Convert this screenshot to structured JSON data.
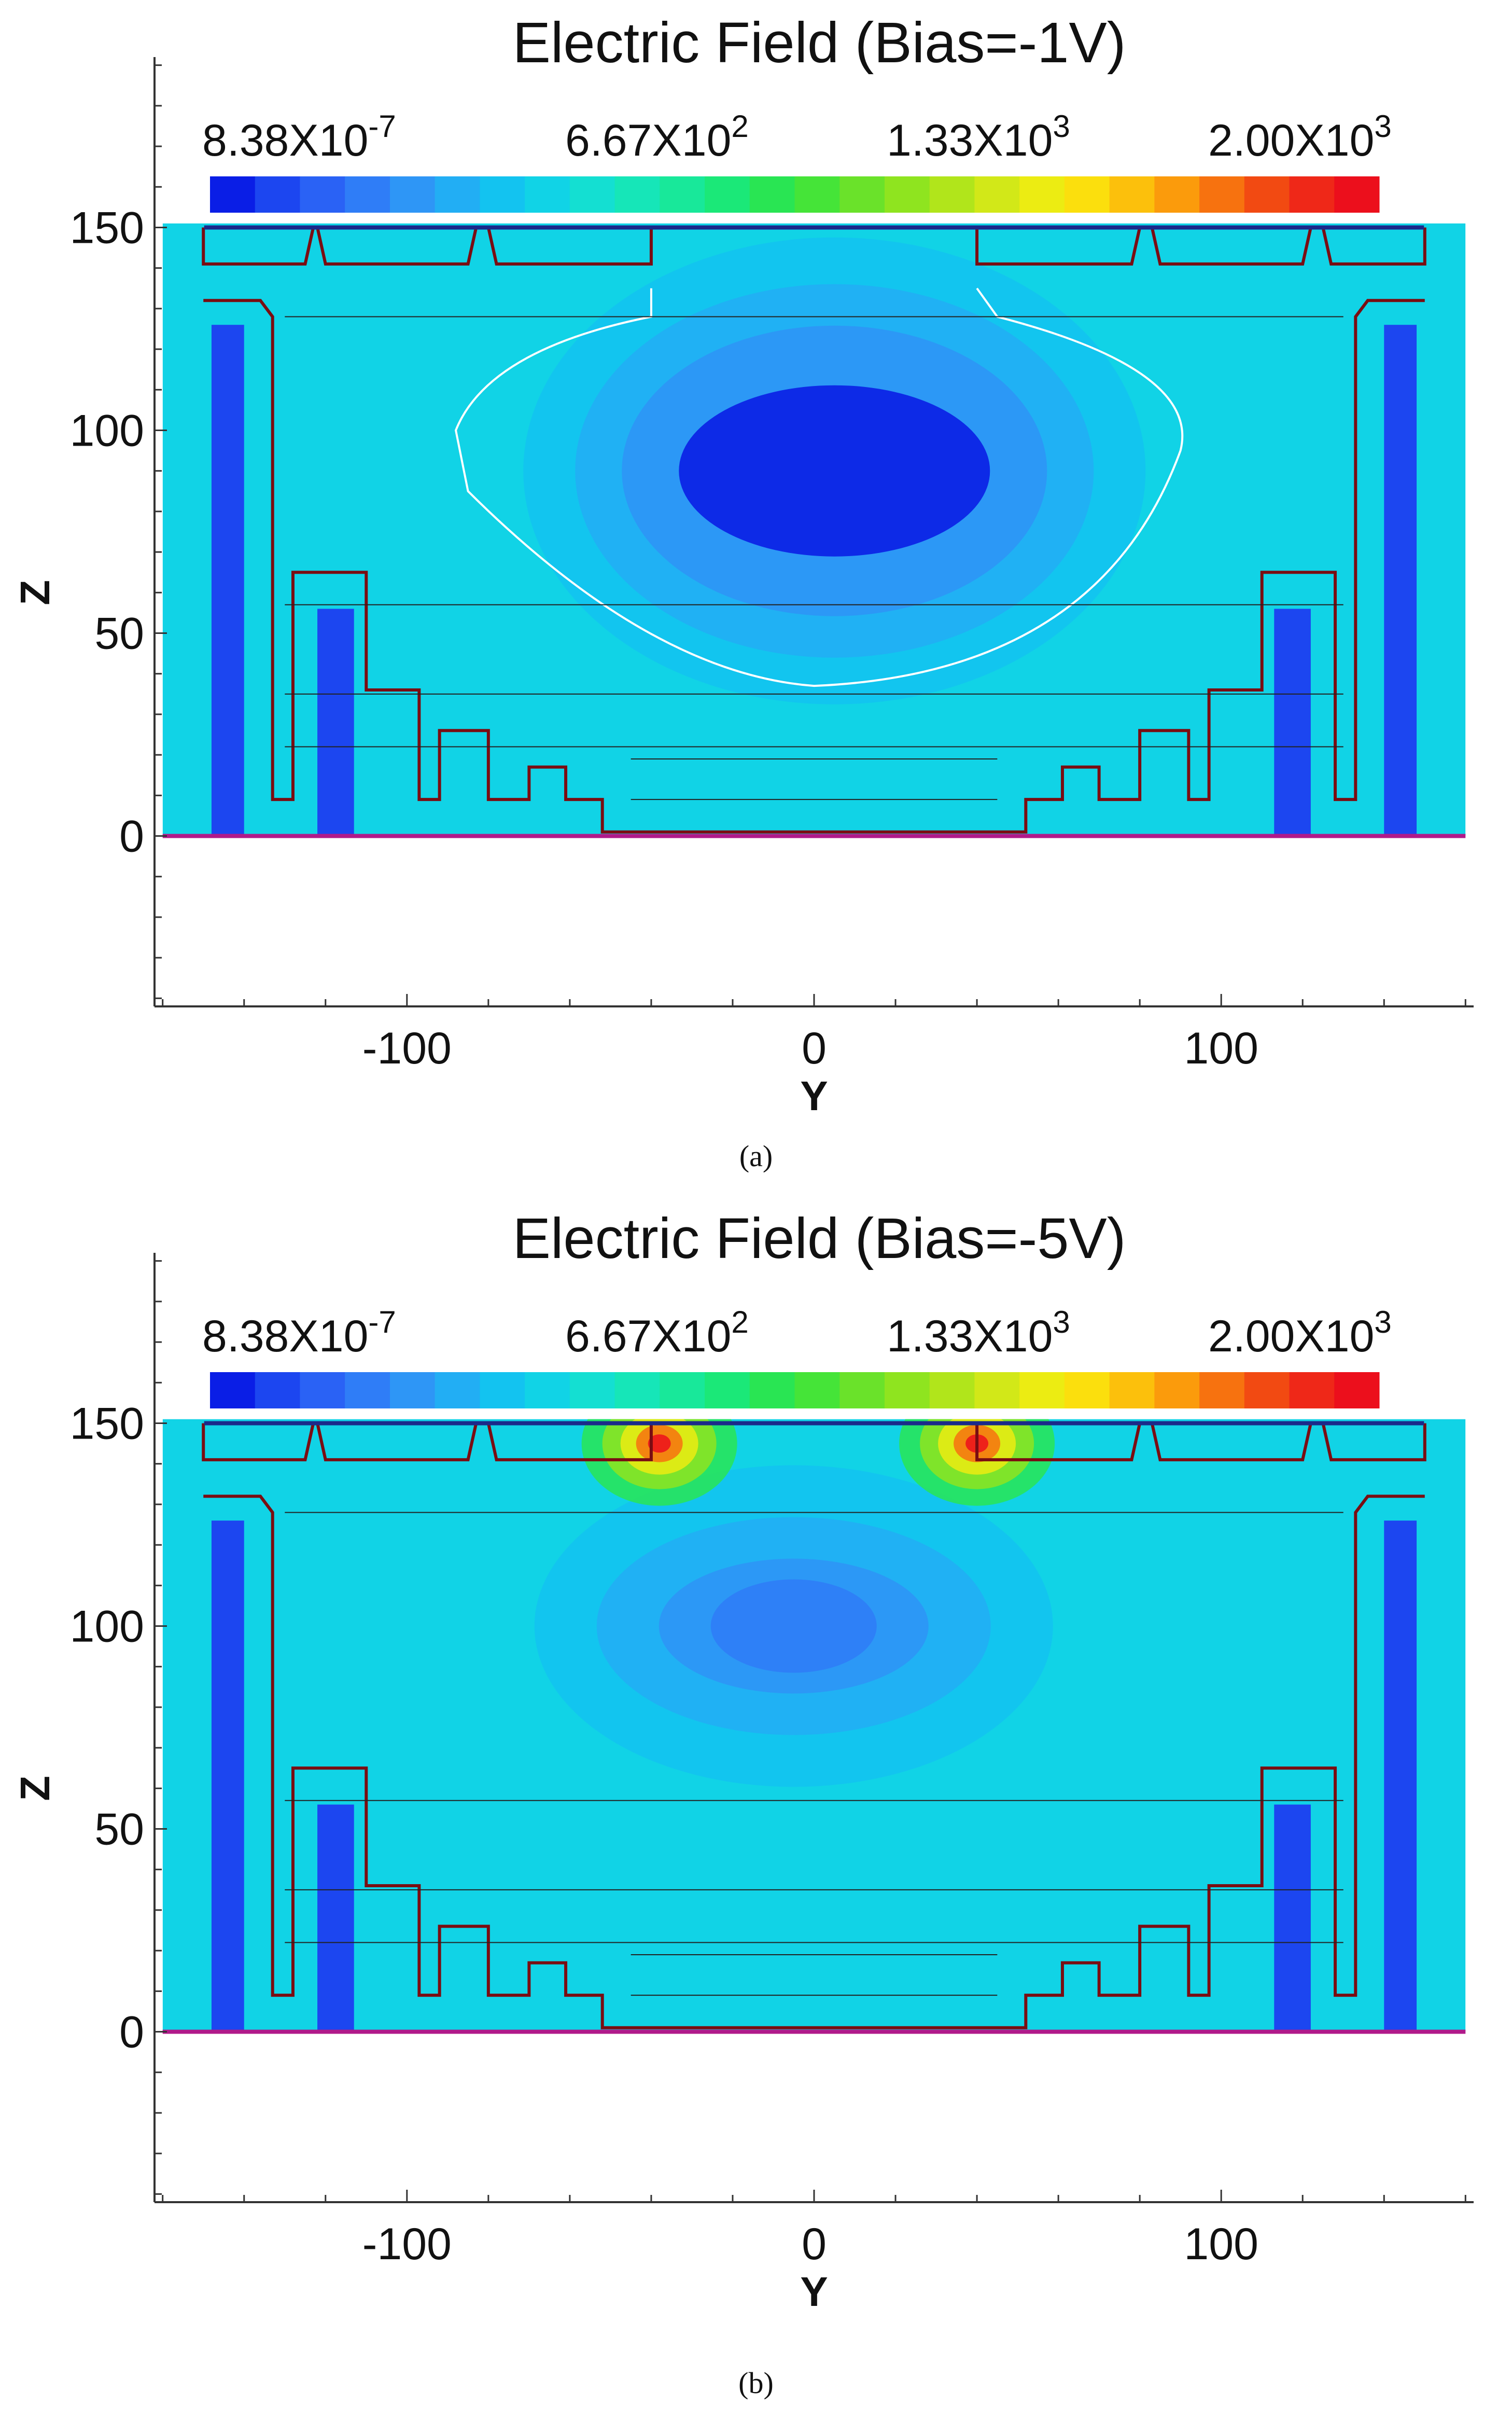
{
  "panels": [
    {
      "caption": "(a)",
      "chart_data": {
        "type": "heatmap",
        "title": "Electric Field (Bias=-1V)",
        "xlabel": "Y",
        "ylabel": "Z",
        "xlim": [
          -162,
          162
        ],
        "ylim": [
          -42,
          192
        ],
        "xticks": [
          -100,
          0,
          100
        ],
        "xtick_labels": [
          "-100",
          "0",
          "100"
        ],
        "yticks": [
          0,
          50,
          100,
          150
        ],
        "ytick_labels": [
          "0",
          "50",
          "100",
          "150"
        ],
        "colorbar": {
          "min": 8.38e-07,
          "max": 2000,
          "labels": [
            {
              "mantissa": "8.38X10",
              "exp": "-7",
              "value": 8.38e-07
            },
            {
              "mantissa": "6.67X10",
              "exp": "2",
              "value": 667
            },
            {
              "mantissa": "1.33X10",
              "exp": "3",
              "value": 1330
            },
            {
              "mantissa": "2.00X10",
              "exp": "3",
              "value": 2000
            }
          ],
          "colors": [
            "#0a1ee6",
            "#1c46f0",
            "#2a62f5",
            "#2f7df7",
            "#2e96f6",
            "#22aef4",
            "#13c3f0",
            "#11d3e6",
            "#14dfd2",
            "#16e6b8",
            "#18e89a",
            "#1be878",
            "#29e553",
            "#45e438",
            "#6ae22a",
            "#8fe41f",
            "#b1e51b",
            "#d2e818",
            "#ecec12",
            "#fbdf0d",
            "#fcc00c",
            "#fb9b0c",
            "#f7720f",
            "#f24a12",
            "#ef2818",
            "#ec0f1c"
          ]
        },
        "field": {
          "base_level": 7,
          "low_region": {
            "center_y": 5,
            "center_z": 90,
            "level": 0
          },
          "hotspots": []
        }
      }
    },
    {
      "caption": "(b)",
      "chart_data": {
        "type": "heatmap",
        "title": "Electric Field (Bias=-5V)",
        "xlabel": "Y",
        "ylabel": "Z",
        "xlim": [
          -162,
          162
        ],
        "ylim": [
          -42,
          192
        ],
        "xticks": [
          -100,
          0,
          100
        ],
        "xtick_labels": [
          "-100",
          "0",
          "100"
        ],
        "yticks": [
          0,
          50,
          100,
          150
        ],
        "ytick_labels": [
          "0",
          "50",
          "100",
          "150"
        ],
        "colorbar": {
          "min": 8.38e-07,
          "max": 2000,
          "labels": [
            {
              "mantissa": "8.38X10",
              "exp": "-7",
              "value": 8.38e-07
            },
            {
              "mantissa": "6.67X10",
              "exp": "2",
              "value": 667
            },
            {
              "mantissa": "1.33X10",
              "exp": "3",
              "value": 1330
            },
            {
              "mantissa": "2.00X10",
              "exp": "3",
              "value": 2000
            }
          ],
          "colors": [
            "#0a1ee6",
            "#1c46f0",
            "#2a62f5",
            "#2f7df7",
            "#2e96f6",
            "#22aef4",
            "#13c3f0",
            "#11d3e6",
            "#14dfd2",
            "#16e6b8",
            "#18e89a",
            "#1be878",
            "#29e553",
            "#45e438",
            "#6ae22a",
            "#8fe41f",
            "#b1e51b",
            "#d2e818",
            "#ecec12",
            "#fbdf0d",
            "#fcc00c",
            "#fb9b0c",
            "#f7720f",
            "#f24a12",
            "#ef2818",
            "#ec0f1c"
          ]
        },
        "field": {
          "base_level": 7,
          "low_region": {
            "center_y": -5,
            "center_z": 100,
            "level": 3
          },
          "hotspots": [
            {
              "y": -38,
              "z": 145
            },
            {
              "y": 40,
              "z": 145
            }
          ]
        }
      }
    }
  ]
}
